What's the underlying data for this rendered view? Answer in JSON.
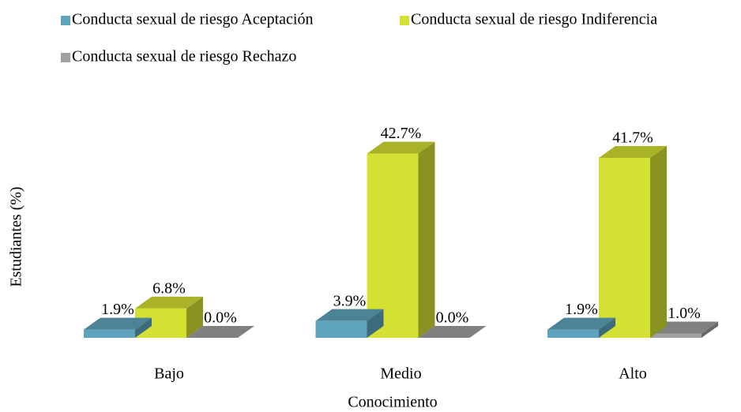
{
  "chart_data": {
    "type": "bar3d",
    "x_label": "Conocimiento",
    "y_label": "Estudiantes (%)",
    "categories": [
      "Bajo",
      "Medio",
      "Alto"
    ],
    "ylim": [
      0,
      45
    ],
    "series": [
      {
        "name": "Conducta sexual de riesgo Aceptación",
        "color": "#5fa4bd",
        "values": [
          1.9,
          3.9,
          1.9
        ],
        "value_labels": [
          "1.9%",
          "3.9%",
          "1.9%"
        ]
      },
      {
        "name": "Conducta sexual de riesgo Indiferencia",
        "color": "#d4e032",
        "values": [
          6.8,
          42.7,
          41.7
        ],
        "value_labels": [
          "6.8%",
          "42.7%",
          "41.7%"
        ]
      },
      {
        "name": "Conducta sexual de riesgo Rechazo",
        "color": "#a0a0a0",
        "values": [
          0.0,
          0.0,
          1.0
        ],
        "value_labels": [
          "0.0%",
          "0.0%",
          "1.0%"
        ]
      }
    ]
  }
}
